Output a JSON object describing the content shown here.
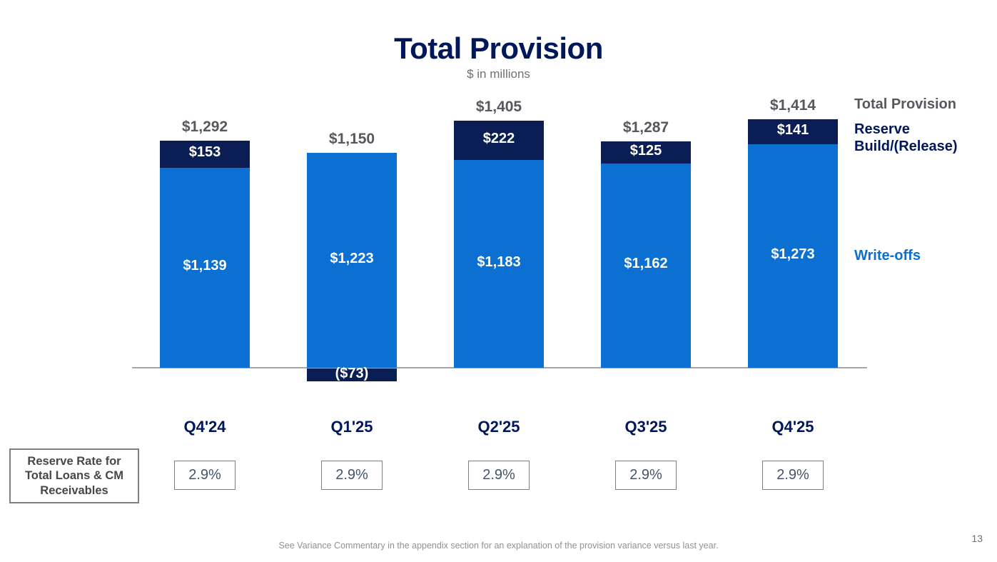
{
  "slide": {
    "title": "Total Provision",
    "subtitle": "$ in millions",
    "footnote": "See Variance Commentary in the appendix section for an explanation of the provision variance versus last year.",
    "page_number": "13"
  },
  "legend": {
    "total_label": "Total Provision",
    "reserve_label": "Reserve Build/(Release)",
    "writeoffs_label": "Write-offs"
  },
  "reserve_rate": {
    "box_label": "Reserve Rate for Total Loans & CM Receivables",
    "values": [
      "2.9%",
      "2.9%",
      "2.9%",
      "2.9%",
      "2.9%"
    ]
  },
  "colors": {
    "navy": "#0a1e55",
    "blue": "#0b70d1",
    "gray_text": "#55585f",
    "axis": "#a6a6a6"
  },
  "chart_data": {
    "type": "bar",
    "stacked": true,
    "title": "Total Provision",
    "units": "$ in millions",
    "categories": [
      "Q4'24",
      "Q1'25",
      "Q2'25",
      "Q3'25",
      "Q4'25"
    ],
    "series": [
      {
        "name": "Write-offs",
        "color": "#0b70d1",
        "values": [
          1139,
          1223,
          1183,
          1162,
          1273
        ],
        "labels": [
          "$1,139",
          "$1,223",
          "$1,183",
          "$1,162",
          "$1,273"
        ]
      },
      {
        "name": "Reserve Build/(Release)",
        "color": "#0a1e55",
        "values": [
          153,
          -73,
          222,
          125,
          141
        ],
        "labels": [
          "$153",
          "($73)",
          "$222",
          "$125",
          "$141"
        ]
      }
    ],
    "totals": {
      "values": [
        1292,
        1150,
        1405,
        1287,
        1414
      ],
      "labels": [
        "$1,292",
        "$1,150",
        "$1,405",
        "$1,287",
        "$1,414"
      ]
    },
    "reserve_rate_row": [
      "2.9%",
      "2.9%",
      "2.9%",
      "2.9%",
      "2.9%"
    ],
    "ylim": [
      -100,
      1500
    ],
    "grid": false,
    "legend_position": "right"
  }
}
